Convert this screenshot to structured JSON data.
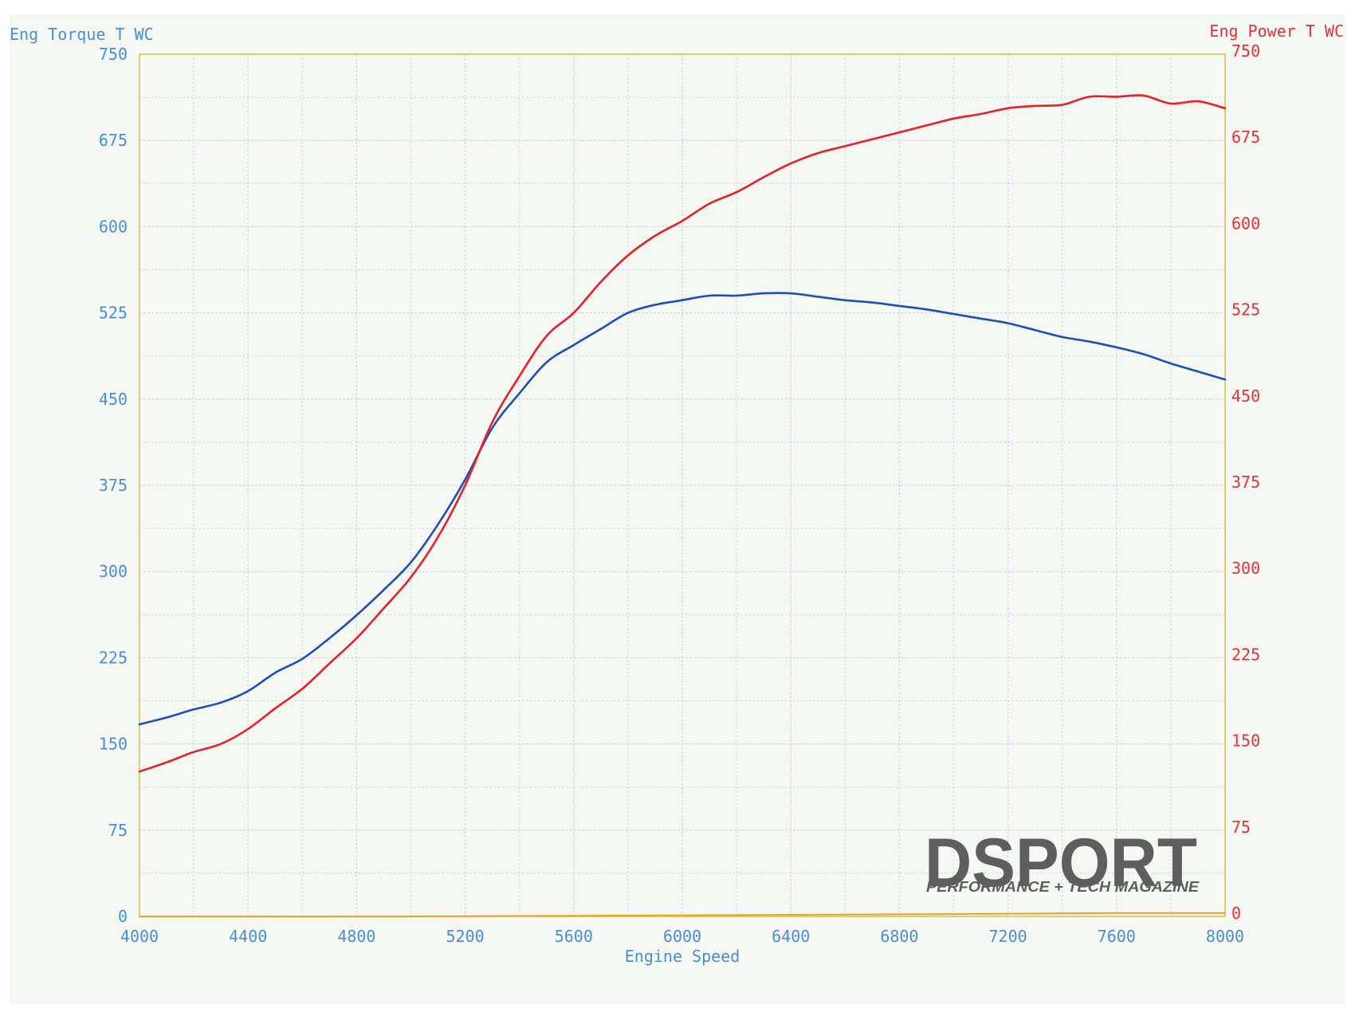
{
  "chart_data": {
    "type": "line",
    "y_left_title": "Eng Torque T WC",
    "y_right_title": "Eng Power T WC",
    "xlabel": "Engine Speed",
    "xlim": [
      4000,
      8000
    ],
    "ylim_left": [
      0,
      750
    ],
    "ylim_right": [
      0,
      750
    ],
    "x_ticks": [
      "4000",
      "4400",
      "4800",
      "5200",
      "5600",
      "6000",
      "6400",
      "6800",
      "7200",
      "7600",
      "8000"
    ],
    "y_left_ticks": [
      "0",
      "75",
      "150",
      "225",
      "300",
      "375",
      "450",
      "525",
      "600",
      "675",
      "750"
    ],
    "y_right_ticks": [
      "0",
      "75",
      "150",
      "225",
      "300",
      "375",
      "450",
      "525",
      "600",
      "675",
      "750"
    ],
    "grid": true,
    "colors": {
      "torque": "#1e4fb8",
      "power": "#e8202a",
      "baseline": "#f0a020",
      "grid": "#c9d2d6",
      "frame": "#d8c048"
    },
    "series": [
      {
        "axis": "left",
        "color": "#1e4fb8",
        "x": [
          4000,
          4100,
          4200,
          4300,
          4400,
          4500,
          4600,
          4700,
          4800,
          4900,
          5000,
          5100,
          5200,
          5300,
          5400,
          5500,
          5600,
          5700,
          5800,
          5900,
          6000,
          6100,
          6200,
          6300,
          6400,
          6500,
          6600,
          6700,
          6800,
          6900,
          7000,
          7100,
          7200,
          7300,
          7400,
          7500,
          7600,
          7700,
          7800,
          7900,
          8000
        ],
        "values": [
          167,
          173,
          180,
          186,
          196,
          212,
          224,
          242,
          262,
          284,
          308,
          341,
          380,
          425,
          455,
          482,
          497,
          511,
          525,
          532,
          536,
          540,
          540,
          542,
          542,
          539,
          536,
          534,
          531,
          528,
          524,
          520,
          516,
          510,
          504,
          500,
          495,
          489,
          481,
          474,
          467
        ]
      },
      {
        "axis": "right",
        "color": "#e8202a",
        "x": [
          4000,
          4100,
          4200,
          4300,
          4400,
          4500,
          4600,
          4700,
          4800,
          4900,
          5000,
          5100,
          5200,
          5300,
          5400,
          5500,
          5600,
          5700,
          5800,
          5900,
          6000,
          6100,
          6200,
          6300,
          6400,
          6500,
          6600,
          6700,
          6800,
          6900,
          7000,
          7100,
          7200,
          7300,
          7400,
          7500,
          7600,
          7700,
          7800,
          7900,
          8000
        ],
        "values": [
          126,
          134,
          143,
          150,
          163,
          181,
          198,
          220,
          242,
          268,
          295,
          330,
          375,
          430,
          470,
          505,
          525,
          552,
          575,
          592,
          605,
          620,
          630,
          643,
          655,
          664,
          670,
          676,
          682,
          688,
          694,
          698,
          703,
          705,
          706,
          713,
          713,
          714,
          707,
          709,
          703
        ]
      },
      {
        "axis": "right",
        "color": "#f0a020",
        "x": [
          4000,
          5000,
          6000,
          7000,
          7600,
          8000
        ],
        "values": [
          0,
          0,
          1,
          2,
          3,
          3
        ]
      }
    ]
  },
  "logo": {
    "main": "DSPORT",
    "sub": "PERFORMANCE + TECH MAGAZINE"
  }
}
